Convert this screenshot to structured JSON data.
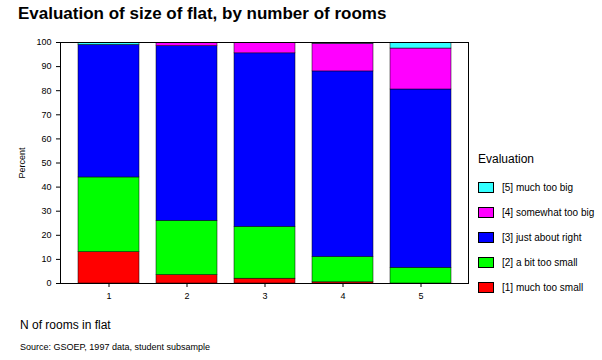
{
  "chart_data": {
    "type": "bar",
    "stacked": true,
    "title": "Evaluation of size of flat, by number of rooms",
    "x_label": "N of rooms in flat",
    "y_label": "Percent",
    "source": "Source: GSOEP, 1997 data, student subsample",
    "legend_title": "Evaluation",
    "legend": "right",
    "categories": [
      "1",
      "2",
      "3",
      "4",
      "5"
    ],
    "series": [
      {
        "name": "[1] much too small",
        "color": "#ff0000",
        "values": [
          13,
          3.5,
          2,
          0.5,
          0
        ]
      },
      {
        "name": "[2] a bit too small",
        "color": "#00ff00",
        "values": [
          31,
          22.5,
          21.5,
          10.5,
          6.5
        ]
      },
      {
        "name": "[3] just about right",
        "color": "#0000ff",
        "values": [
          55,
          72.5,
          72,
          77,
          74
        ]
      },
      {
        "name": "[4] somewhat too big",
        "color": "#ff00ff",
        "values": [
          0,
          1.5,
          4.5,
          11.5,
          17
        ]
      },
      {
        "name": "[5] much too big",
        "color": "#33ffff",
        "values": [
          1,
          0,
          0,
          0.5,
          2.5
        ]
      }
    ],
    "ylim": [
      0,
      100
    ],
    "yticks": [
      0,
      10,
      20,
      30,
      40,
      50,
      60,
      70,
      80,
      90,
      100
    ]
  }
}
